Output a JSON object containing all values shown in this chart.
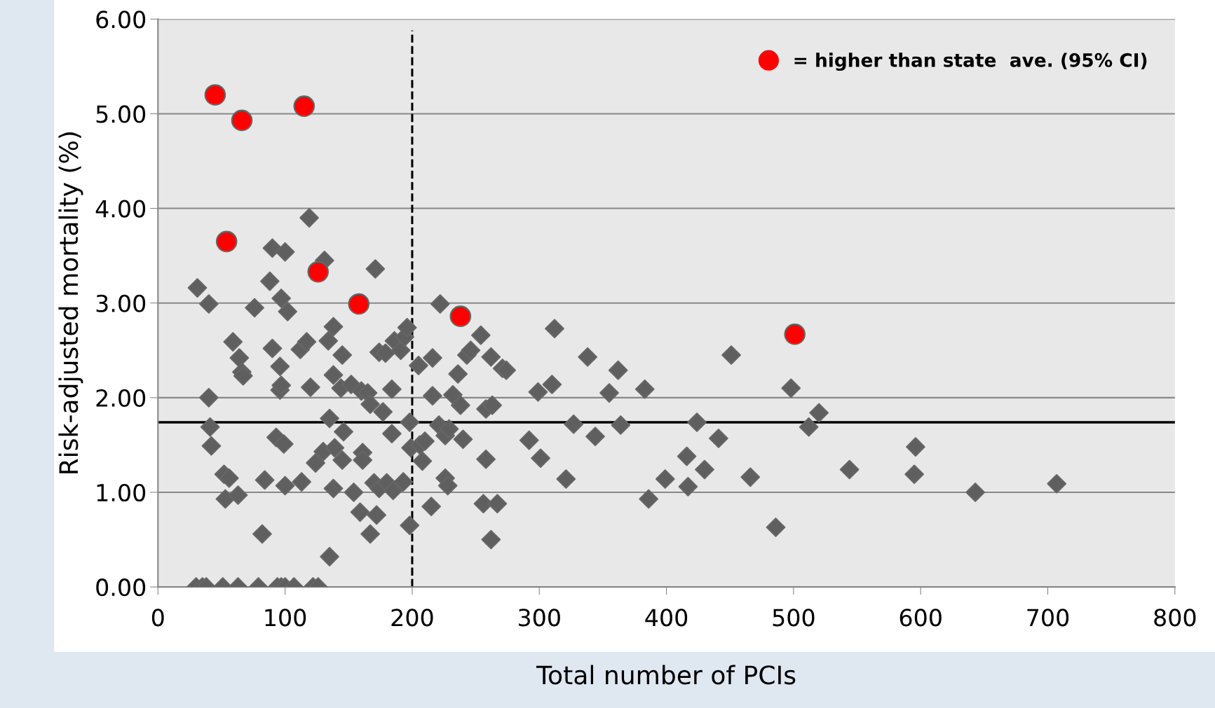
{
  "chart_data": {
    "type": "scatter",
    "xlabel": "Total number of PCIs",
    "ylabel": "Risk-adjusted mortality (%)",
    "xlim": [
      0,
      800
    ],
    "xticks": [
      0,
      100,
      200,
      300,
      400,
      500,
      600,
      700,
      800
    ],
    "ylim": [
      0,
      6
    ],
    "yticks": [
      {
        "value": 0,
        "label": "0.00"
      },
      {
        "value": 1,
        "label": "1.00"
      },
      {
        "value": 2,
        "label": "2.00"
      },
      {
        "value": 3,
        "label": "3.00"
      },
      {
        "value": 4,
        "label": "4.00"
      },
      {
        "value": 5,
        "label": "5.00"
      },
      {
        "value": 6,
        "label": "6.00"
      }
    ],
    "grid": "y",
    "legend": "top right",
    "ref_lines": [
      {
        "axis": "y",
        "value": 1.74,
        "color": "#000000",
        "line_style": "solid"
      },
      {
        "axis": "x",
        "value": 200,
        "color": "#000000",
        "line_style": "dashed"
      }
    ],
    "series": [
      {
        "color": "#5f5f5f",
        "marker": "diamond",
        "x": [
          31,
          40,
          40,
          41,
          42,
          30,
          35,
          38,
          51,
          63,
          79,
          94,
          97,
          100,
          107,
          122,
          126,
          59,
          64,
          66,
          67,
          52,
          56,
          53,
          63,
          82,
          84,
          76,
          90,
          100,
          88,
          97,
          102,
          90,
          96,
          96,
          97,
          93,
          99,
          100,
          113,
          119,
          131,
          112,
          117,
          120,
          134,
          138,
          145,
          138,
          144,
          152,
          135,
          146,
          124,
          130,
          139,
          145,
          135,
          138,
          154,
          159,
          167,
          161,
          161,
          160,
          165,
          167,
          171,
          174,
          179,
          177,
          184,
          184,
          172,
          170,
          174,
          180,
          185,
          193,
          186,
          191,
          194,
          196,
          198,
          198,
          199,
          206,
          208,
          210,
          205,
          215,
          216,
          216,
          222,
          221,
          226,
          228,
          226,
          229,
          232,
          236,
          238,
          240,
          243,
          246,
          254,
          258,
          263,
          258,
          256,
          267,
          262,
          262,
          271,
          274,
          292,
          299,
          301,
          310,
          312,
          321,
          327,
          338,
          344,
          362,
          364,
          355,
          383,
          386,
          399,
          416,
          417,
          424,
          430,
          441,
          451,
          466,
          486,
          498,
          512,
          520,
          544,
          596,
          595,
          643,
          707
        ],
        "values": [
          3.16,
          2.99,
          2.0,
          1.69,
          1.49,
          0,
          0,
          0,
          0,
          0,
          0,
          0,
          0,
          0,
          0,
          0,
          0,
          2.59,
          2.42,
          2.27,
          2.23,
          1.19,
          1.15,
          0.93,
          0.97,
          0.56,
          1.13,
          2.95,
          3.58,
          3.54,
          3.23,
          3.05,
          2.91,
          2.52,
          2.33,
          2.08,
          2.13,
          1.58,
          1.51,
          1.07,
          1.11,
          3.9,
          3.45,
          2.51,
          2.59,
          2.11,
          2.6,
          2.75,
          2.45,
          2.24,
          2.1,
          2.14,
          1.78,
          1.64,
          1.31,
          1.43,
          1.47,
          1.34,
          0.32,
          1.04,
          1.0,
          0.79,
          0.56,
          1.42,
          1.34,
          2.07,
          2.05,
          1.93,
          3.36,
          2.48,
          2.47,
          1.85,
          2.09,
          1.62,
          0.76,
          1.1,
          1.04,
          1.1,
          1.02,
          1.11,
          2.6,
          2.5,
          2.64,
          2.74,
          1.74,
          0.65,
          1.47,
          1.5,
          1.33,
          1.54,
          2.34,
          0.85,
          2.42,
          2.02,
          2.99,
          1.71,
          1.15,
          1.07,
          1.6,
          1.67,
          2.03,
          2.25,
          1.92,
          1.56,
          2.45,
          2.5,
          2.66,
          1.88,
          1.92,
          1.35,
          0.88,
          0.88,
          0.5,
          2.43,
          2.31,
          2.29,
          1.55,
          2.06,
          1.36,
          2.14,
          2.73,
          1.14,
          1.72,
          2.43,
          1.59,
          2.29,
          1.71,
          2.05,
          2.09,
          0.93,
          1.14,
          1.38,
          1.06,
          1.74,
          1.24,
          1.57,
          2.45,
          1.16,
          0.63,
          2.1,
          1.69,
          1.84,
          1.24,
          1.48,
          1.19,
          1.0,
          1.09
        ]
      },
      {
        "name": "= higher than state  ave. (95% CI)",
        "color": "#ff0000",
        "marker": "circle",
        "x": [
          45,
          66,
          115,
          54,
          126,
          158,
          238,
          501
        ],
        "values": [
          5.2,
          4.93,
          5.08,
          3.65,
          3.33,
          2.99,
          2.86,
          2.67
        ]
      }
    ]
  }
}
